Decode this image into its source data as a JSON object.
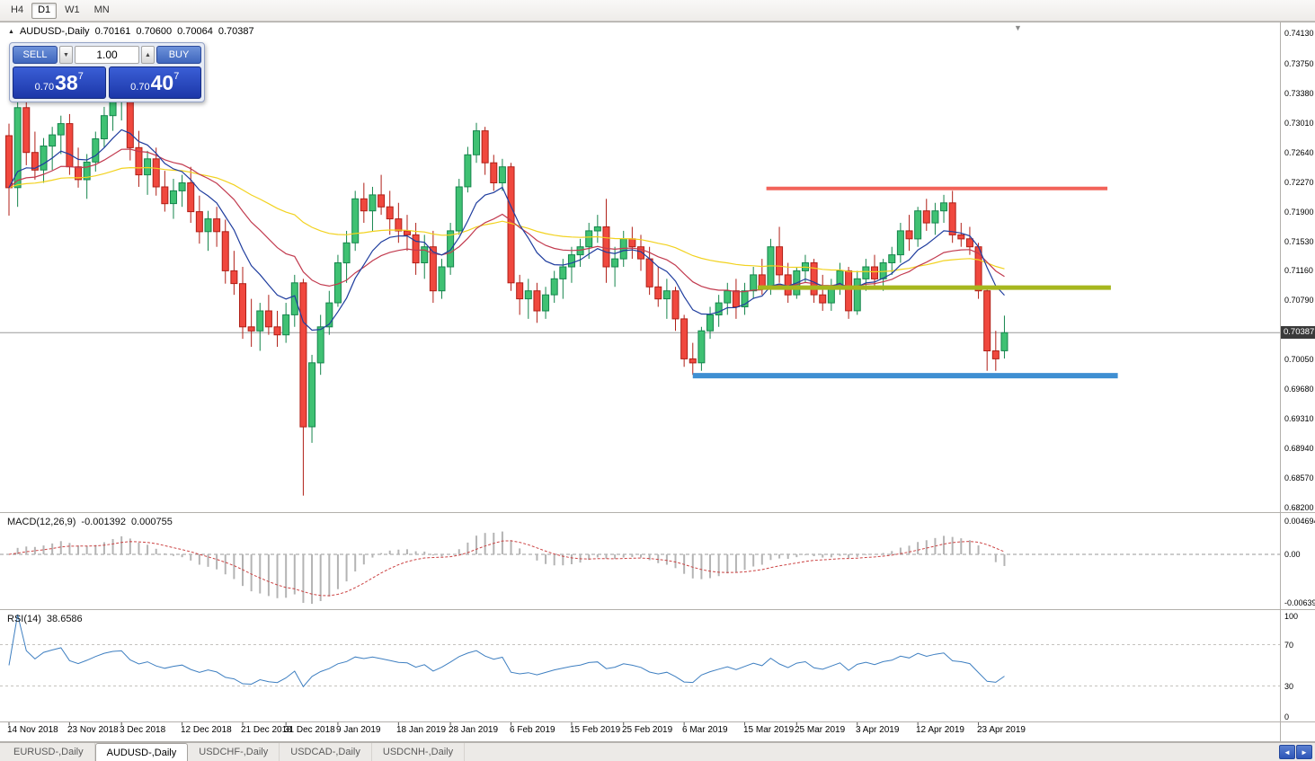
{
  "toolbar": {
    "timeframes": [
      {
        "label": "H4",
        "active": false
      },
      {
        "label": "D1",
        "active": true
      },
      {
        "label": "W1",
        "active": false
      },
      {
        "label": "MN",
        "active": false
      }
    ]
  },
  "icons": {
    "bullish_marker": "▲",
    "shift_marker": "▼",
    "spinner_up": "▲",
    "spinner_down": "▼",
    "tab_scroll_left": "◄",
    "tab_scroll_right": "►"
  },
  "chart_header": {
    "symbol": "AUDUSD-,Daily",
    "open": "0.70161",
    "high": "0.70600",
    "low": "0.70064",
    "close": "0.70387"
  },
  "trade_panel": {
    "sell_label": "SELL",
    "buy_label": "BUY",
    "volume": "1.00",
    "sell_price": {
      "prefix": "0.70",
      "big": "38",
      "sup": "7"
    },
    "buy_price": {
      "prefix": "0.70",
      "big": "40",
      "sup": "7"
    }
  },
  "price_axis": {
    "labels": [
      "0.74130",
      "0.73750",
      "0.73380",
      "0.73010",
      "0.72640",
      "0.72270",
      "0.71900",
      "0.71530",
      "0.71160",
      "0.70790",
      "0.70420",
      "0.70050",
      "0.69680",
      "0.69310",
      "0.68940",
      "0.68570",
      "0.68200"
    ],
    "current_price": "0.70387"
  },
  "macd_panel": {
    "title": "MACD(12,26,9)",
    "value_main": "-0.001392",
    "value_signal": "0.000755",
    "axis_labels": [
      "0.004694",
      "0.00",
      "-0.006393"
    ]
  },
  "rsi_panel": {
    "title": "RSI(14)",
    "value": "38.6586",
    "axis_labels": [
      "100",
      "70",
      "30",
      "0"
    ]
  },
  "bottom_tabs": [
    {
      "label": "EURUSD-,Daily",
      "active": false
    },
    {
      "label": "AUDUSD-,Daily",
      "active": true
    },
    {
      "label": "USDCHF-,Daily",
      "active": false
    },
    {
      "label": "USDCAD-,Daily",
      "active": false
    },
    {
      "label": "USDCNH-,Daily",
      "active": false
    }
  ],
  "colors": {
    "bull_fill": "#3fc173",
    "bull_stroke": "#15854c",
    "bear_fill": "#f0483e",
    "bear_stroke": "#b01f17",
    "ma_fast": "#1f3d9e",
    "ma_mid": "#c23b4f",
    "ma_slow": "#f2d21f",
    "macd_hist": "#b4b4b4",
    "macd_signal": "#cc4444",
    "rsi_line": "#3e7fc1",
    "sr_red": "#f2635a",
    "sr_olive": "#a6b71e",
    "sr_blue": "#3f8fd2",
    "price_line": "#9a9a9a",
    "badge_bg": "#3a3a3a"
  },
  "chart_data": {
    "type": "candlestick",
    "title": "AUDUSD-,Daily",
    "symbol": "AUDUSD",
    "timeframe": "Daily",
    "y_range": [
      0.682,
      0.7413
    ],
    "current_price": 0.70387,
    "rsi_period": 14,
    "rsi_value": 38.6586,
    "macd": {
      "fast": 12,
      "slow": 26,
      "signal": 9,
      "value": -0.001392,
      "signal_value": 0.000755
    },
    "moving_averages": [
      {
        "period": 9,
        "color_key": "ma_fast"
      },
      {
        "period": 21,
        "color_key": "ma_mid"
      },
      {
        "period": 55,
        "color_key": "ma_slow"
      }
    ],
    "horizontal_lines": [
      {
        "name": "resistance-line",
        "price": 0.7219,
        "i1": 87.5,
        "i2": 126.9,
        "color_key": "sr_red",
        "thickness": 4
      },
      {
        "name": "mid-support-line",
        "price": 0.7095,
        "i1": 86.5,
        "i2": 127.3,
        "color_key": "sr_olive",
        "thickness": 5
      },
      {
        "name": "lower-support-line",
        "price": 0.6985,
        "i1": 79.0,
        "i2": 128.1,
        "color_key": "sr_blue",
        "thickness": 6
      }
    ],
    "x_labels": [
      {
        "i": 0,
        "t": "14 Nov 2018"
      },
      {
        "i": 7,
        "t": "23 Nov 2018"
      },
      {
        "i": 13,
        "t": "3 Dec 2018"
      },
      {
        "i": 20,
        "t": "12 Dec 2018"
      },
      {
        "i": 27,
        "t": "21 Dec 2018"
      },
      {
        "i": 32,
        "t": "31 Dec 2018"
      },
      {
        "i": 38,
        "t": "9 Jan 2019"
      },
      {
        "i": 45,
        "t": "18 Jan 2019"
      },
      {
        "i": 51,
        "t": "28 Jan 2019"
      },
      {
        "i": 58,
        "t": "6 Feb 2019"
      },
      {
        "i": 65,
        "t": "15 Feb 2019"
      },
      {
        "i": 71,
        "t": "25 Feb 2019"
      },
      {
        "i": 78,
        "t": "6 Mar 2019"
      },
      {
        "i": 85,
        "t": "15 Mar 2019"
      },
      {
        "i": 91,
        "t": "25 Mar 2019"
      },
      {
        "i": 98,
        "t": "3 Apr 2019"
      },
      {
        "i": 105,
        "t": "12 Apr 2019"
      },
      {
        "i": 112,
        "t": "23 Apr 2019"
      }
    ],
    "candles": [
      [
        0.7285,
        0.73,
        0.7185,
        0.722
      ],
      [
        0.722,
        0.7331,
        0.7196,
        0.732
      ],
      [
        0.732,
        0.733,
        0.7248,
        0.7264
      ],
      [
        0.7264,
        0.729,
        0.723,
        0.7242
      ],
      [
        0.7242,
        0.7282,
        0.7226,
        0.7272
      ],
      [
        0.7272,
        0.7296,
        0.7242,
        0.7286
      ],
      [
        0.7286,
        0.731,
        0.7262,
        0.73
      ],
      [
        0.73,
        0.7312,
        0.7236,
        0.7246
      ],
      [
        0.7246,
        0.727,
        0.722,
        0.723
      ],
      [
        0.723,
        0.7262,
        0.7206,
        0.7252
      ],
      [
        0.7252,
        0.729,
        0.724,
        0.7281
      ],
      [
        0.7281,
        0.7321,
        0.727,
        0.731
      ],
      [
        0.731,
        0.7338,
        0.7291,
        0.7329
      ],
      [
        0.7329,
        0.734,
        0.7304,
        0.7335
      ],
      [
        0.7335,
        0.734,
        0.7254,
        0.727
      ],
      [
        0.727,
        0.7291,
        0.7221,
        0.7236
      ],
      [
        0.7236,
        0.7266,
        0.7211,
        0.7256
      ],
      [
        0.7256,
        0.727,
        0.721,
        0.7221
      ],
      [
        0.7221,
        0.7241,
        0.719,
        0.72
      ],
      [
        0.72,
        0.7231,
        0.7181,
        0.7216
      ],
      [
        0.7216,
        0.7236,
        0.7196,
        0.7226
      ],
      [
        0.7226,
        0.7246,
        0.7176,
        0.719
      ],
      [
        0.719,
        0.721,
        0.715,
        0.7165
      ],
      [
        0.7165,
        0.7191,
        0.7141,
        0.7181
      ],
      [
        0.7181,
        0.7196,
        0.7146,
        0.7165
      ],
      [
        0.7165,
        0.718,
        0.71,
        0.7116
      ],
      [
        0.7116,
        0.7141,
        0.7086,
        0.71
      ],
      [
        0.71,
        0.7121,
        0.7031,
        0.7046
      ],
      [
        0.7046,
        0.7081,
        0.7021,
        0.7041
      ],
      [
        0.7041,
        0.7076,
        0.7016,
        0.7066
      ],
      [
        0.7066,
        0.7086,
        0.7036,
        0.7046
      ],
      [
        0.7046,
        0.7066,
        0.7021,
        0.7036
      ],
      [
        0.7036,
        0.7076,
        0.7026,
        0.7061
      ],
      [
        0.7061,
        0.7111,
        0.7046,
        0.7101
      ],
      [
        0.7101,
        0.7106,
        0.6835,
        0.6921
      ],
      [
        0.6921,
        0.7011,
        0.6901,
        0.7001
      ],
      [
        0.7001,
        0.7061,
        0.6986,
        0.7046
      ],
      [
        0.7046,
        0.7091,
        0.7036,
        0.7076
      ],
      [
        0.7076,
        0.7136,
        0.7071,
        0.7126
      ],
      [
        0.7126,
        0.7166,
        0.7101,
        0.7151
      ],
      [
        0.7151,
        0.7216,
        0.7141,
        0.7206
      ],
      [
        0.7206,
        0.7226,
        0.7176,
        0.7191
      ],
      [
        0.7191,
        0.7221,
        0.7166,
        0.7211
      ],
      [
        0.7211,
        0.7236,
        0.7186,
        0.7196
      ],
      [
        0.7196,
        0.7216,
        0.7161,
        0.7181
      ],
      [
        0.7181,
        0.7201,
        0.7151,
        0.7166
      ],
      [
        0.7166,
        0.7186,
        0.7141,
        0.7161
      ],
      [
        0.7161,
        0.7176,
        0.7111,
        0.7126
      ],
      [
        0.7126,
        0.7161,
        0.7106,
        0.7146
      ],
      [
        0.7146,
        0.7166,
        0.7076,
        0.7091
      ],
      [
        0.7091,
        0.7131,
        0.7081,
        0.7121
      ],
      [
        0.7121,
        0.7176,
        0.7111,
        0.7166
      ],
      [
        0.7166,
        0.7231,
        0.7161,
        0.7221
      ],
      [
        0.7221,
        0.7271,
        0.7214,
        0.7261
      ],
      [
        0.7261,
        0.7301,
        0.7251,
        0.7291
      ],
      [
        0.7291,
        0.7296,
        0.7236,
        0.7251
      ],
      [
        0.7251,
        0.7261,
        0.7216,
        0.7226
      ],
      [
        0.7226,
        0.7256,
        0.7216,
        0.7246
      ],
      [
        0.7246,
        0.7251,
        0.7091,
        0.7101
      ],
      [
        0.7101,
        0.7111,
        0.7061,
        0.7081
      ],
      [
        0.7081,
        0.7106,
        0.7056,
        0.7091
      ],
      [
        0.7091,
        0.7101,
        0.7051,
        0.7066
      ],
      [
        0.7066,
        0.7096,
        0.7056,
        0.7086
      ],
      [
        0.7086,
        0.7116,
        0.7076,
        0.7106
      ],
      [
        0.7106,
        0.7131,
        0.7081,
        0.7121
      ],
      [
        0.7121,
        0.7146,
        0.7101,
        0.7136
      ],
      [
        0.7136,
        0.7156,
        0.7121,
        0.7146
      ],
      [
        0.7146,
        0.7176,
        0.7131,
        0.7166
      ],
      [
        0.7166,
        0.7186,
        0.7151,
        0.7171
      ],
      [
        0.7171,
        0.7206,
        0.7101,
        0.7121
      ],
      [
        0.7121,
        0.7146,
        0.7096,
        0.7131
      ],
      [
        0.7131,
        0.7166,
        0.7121,
        0.7156
      ],
      [
        0.7156,
        0.7171,
        0.7131,
        0.7146
      ],
      [
        0.7146,
        0.7161,
        0.7116,
        0.7131
      ],
      [
        0.7131,
        0.7146,
        0.7086,
        0.7096
      ],
      [
        0.7096,
        0.7121,
        0.7071,
        0.7081
      ],
      [
        0.7081,
        0.7106,
        0.7056,
        0.7091
      ],
      [
        0.7091,
        0.7096,
        0.7041,
        0.7056
      ],
      [
        0.7056,
        0.7061,
        0.6996,
        0.7006
      ],
      [
        0.7006,
        0.7026,
        0.6986,
        0.7001
      ],
      [
        0.7001,
        0.7046,
        0.6991,
        0.7041
      ],
      [
        0.7041,
        0.7071,
        0.7031,
        0.7061
      ],
      [
        0.7061,
        0.7086,
        0.7046,
        0.7076
      ],
      [
        0.7076,
        0.7101,
        0.7061,
        0.7091
      ],
      [
        0.7091,
        0.7106,
        0.7056,
        0.7071
      ],
      [
        0.7071,
        0.7101,
        0.7061,
        0.7091
      ],
      [
        0.7091,
        0.7121,
        0.7081,
        0.7111
      ],
      [
        0.7111,
        0.7131,
        0.7086,
        0.7096
      ],
      [
        0.7096,
        0.7156,
        0.7086,
        0.7146
      ],
      [
        0.7146,
        0.7171,
        0.7101,
        0.7111
      ],
      [
        0.7111,
        0.7126,
        0.7076,
        0.7086
      ],
      [
        0.7086,
        0.7121,
        0.7081,
        0.7116
      ],
      [
        0.7116,
        0.7136,
        0.7101,
        0.7126
      ],
      [
        0.7126,
        0.7131,
        0.7076,
        0.7086
      ],
      [
        0.7086,
        0.7111,
        0.7066,
        0.7076
      ],
      [
        0.7076,
        0.7106,
        0.7066,
        0.7096
      ],
      [
        0.7096,
        0.7126,
        0.7086,
        0.7116
      ],
      [
        0.7116,
        0.7121,
        0.7056,
        0.7066
      ],
      [
        0.7066,
        0.7116,
        0.7061,
        0.7106
      ],
      [
        0.7106,
        0.7131,
        0.7091,
        0.7121
      ],
      [
        0.7121,
        0.7136,
        0.7096,
        0.7106
      ],
      [
        0.7106,
        0.7131,
        0.7091,
        0.7126
      ],
      [
        0.7126,
        0.7146,
        0.7111,
        0.7136
      ],
      [
        0.7136,
        0.7176,
        0.7126,
        0.7166
      ],
      [
        0.7166,
        0.7186,
        0.7141,
        0.7156
      ],
      [
        0.7156,
        0.7196,
        0.7146,
        0.7191
      ],
      [
        0.7191,
        0.7206,
        0.7166,
        0.7176
      ],
      [
        0.7176,
        0.7201,
        0.7161,
        0.7191
      ],
      [
        0.7191,
        0.7211,
        0.7176,
        0.7201
      ],
      [
        0.7201,
        0.7216,
        0.7151,
        0.7161
      ],
      [
        0.7161,
        0.7176,
        0.7146,
        0.7156
      ],
      [
        0.7156,
        0.7171,
        0.7136,
        0.7146
      ],
      [
        0.7146,
        0.7151,
        0.7081,
        0.7091
      ],
      [
        0.7091,
        0.7096,
        0.6991,
        0.7016
      ],
      [
        0.7016,
        0.7041,
        0.6991,
        0.7006
      ],
      [
        0.70161,
        0.706,
        0.70064,
        0.70387
      ]
    ]
  }
}
